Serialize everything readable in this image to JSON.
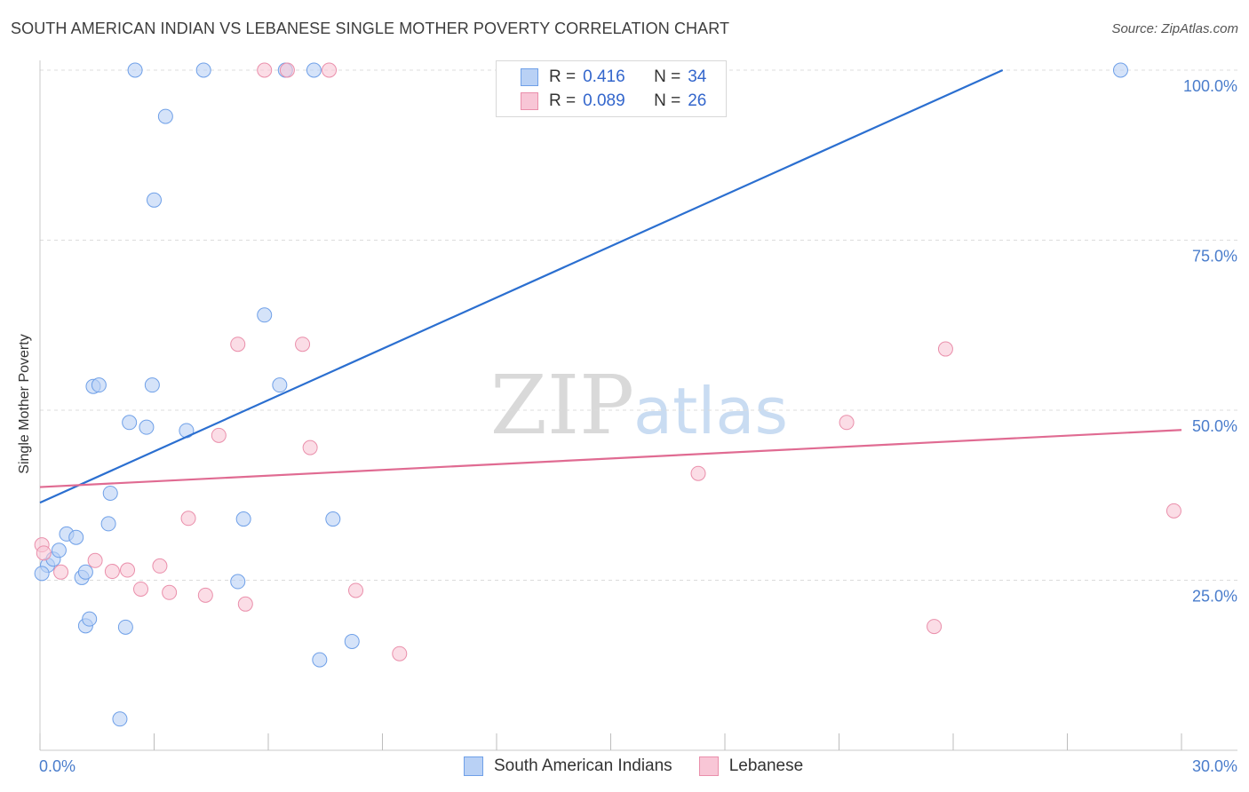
{
  "chart_data": {
    "type": "scatter",
    "title": "SOUTH AMERICAN INDIAN VS LEBANESE SINGLE MOTHER POVERTY CORRELATION CHART",
    "source": "Source: ZipAtlas.com",
    "xlabel": "",
    "ylabel": "Single Mother Poverty",
    "xlim": [
      0,
      30
    ],
    "ylim": [
      0,
      100
    ],
    "x_tick_labels": [
      "0.0%",
      "30.0%"
    ],
    "y_tick_values": [
      25,
      50,
      75,
      100
    ],
    "y_tick_labels": [
      "25.0%",
      "50.0%",
      "75.0%",
      "100.0%"
    ],
    "grid": true,
    "watermark": {
      "part1": "ZIP",
      "part2": "atlas"
    },
    "legend": {
      "r_label": "R =",
      "n_label": "N =",
      "entries": [
        {
          "name": "South American Indians",
          "r": "0.416",
          "n": "34"
        },
        {
          "name": "Lebanese",
          "r": "0.089",
          "n": "26"
        }
      ]
    },
    "series": [
      {
        "name": "South American Indians",
        "color": "#6fa0e8",
        "fill": "#b9d1f5",
        "line_color": "#2b6fd0",
        "trend": {
          "x0": 0,
          "y0": 36.4,
          "x1": 25.3,
          "y1": 100
        },
        "points": [
          [
            0.2,
            27.2
          ],
          [
            0.35,
            28.1
          ],
          [
            0.5,
            29.4
          ],
          [
            0.7,
            31.8
          ],
          [
            0.95,
            31.3
          ],
          [
            1.1,
            25.4
          ],
          [
            1.2,
            26.2
          ],
          [
            1.2,
            18.3
          ],
          [
            1.3,
            19.3
          ],
          [
            1.4,
            53.5
          ],
          [
            1.55,
            53.7
          ],
          [
            1.85,
            37.8
          ],
          [
            1.8,
            33.3
          ],
          [
            2.25,
            18.1
          ],
          [
            2.35,
            48.2
          ],
          [
            2.5,
            100
          ],
          [
            2.8,
            47.5
          ],
          [
            2.95,
            53.7
          ],
          [
            3.0,
            80.9
          ],
          [
            3.3,
            93.2
          ],
          [
            3.85,
            47.0
          ],
          [
            4.3,
            100
          ],
          [
            5.2,
            24.8
          ],
          [
            5.35,
            34.0
          ],
          [
            5.9,
            64.0
          ],
          [
            6.3,
            53.7
          ],
          [
            6.45,
            100
          ],
          [
            7.2,
            100
          ],
          [
            7.35,
            13.3
          ],
          [
            7.7,
            34.0
          ],
          [
            8.2,
            16.0
          ],
          [
            2.1,
            4.6
          ],
          [
            28.4,
            100
          ],
          [
            0.05,
            26.0
          ]
        ]
      },
      {
        "name": "Lebanese",
        "color": "#ea8fab",
        "fill": "#f8c6d6",
        "line_color": "#e06b92",
        "trend": {
          "x0": 0,
          "y0": 38.7,
          "x1": 30,
          "y1": 47.1
        },
        "points": [
          [
            0.05,
            30.2
          ],
          [
            0.55,
            26.2
          ],
          [
            1.45,
            27.9
          ],
          [
            1.9,
            26.3
          ],
          [
            2.3,
            26.5
          ],
          [
            2.65,
            23.7
          ],
          [
            3.15,
            27.1
          ],
          [
            3.4,
            23.2
          ],
          [
            3.9,
            34.1
          ],
          [
            4.35,
            22.8
          ],
          [
            4.7,
            46.3
          ],
          [
            5.2,
            59.7
          ],
          [
            5.4,
            21.5
          ],
          [
            5.9,
            100
          ],
          [
            6.5,
            100
          ],
          [
            6.9,
            59.7
          ],
          [
            7.1,
            44.5
          ],
          [
            7.6,
            100
          ],
          [
            8.3,
            23.5
          ],
          [
            9.45,
            14.2
          ],
          [
            17.3,
            40.7
          ],
          [
            21.2,
            48.2
          ],
          [
            23.5,
            18.2
          ],
          [
            23.8,
            59.0
          ],
          [
            29.8,
            35.2
          ],
          [
            0.1,
            29.0
          ]
        ]
      }
    ]
  }
}
